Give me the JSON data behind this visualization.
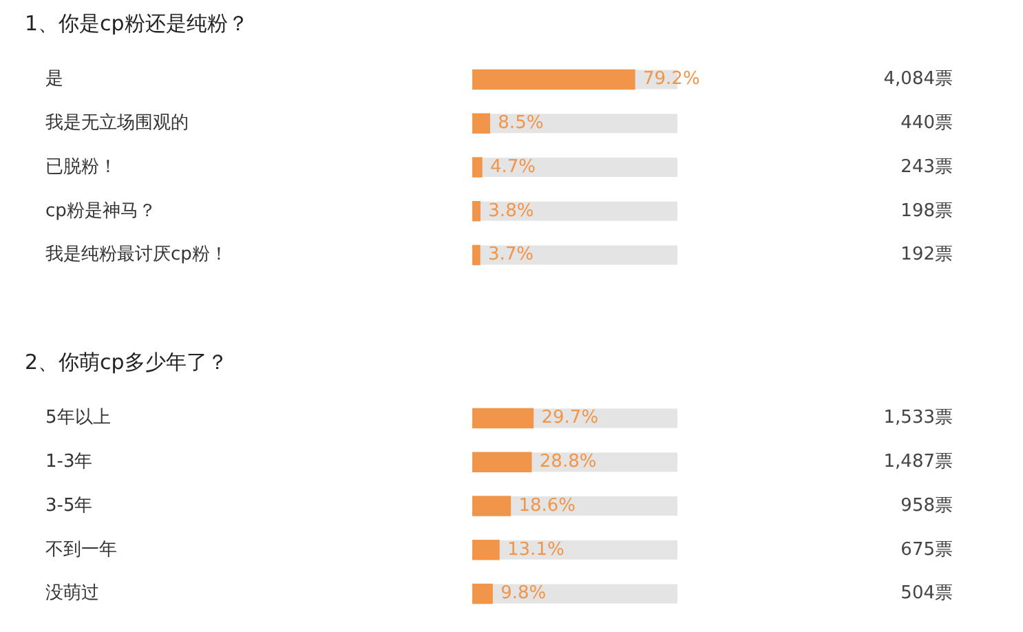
{
  "chart_data": [
    {
      "type": "bar",
      "orientation": "horizontal",
      "title": "1、你是cp粉还是纯粉？",
      "categories": [
        "是",
        "我是无立场围观的",
        "已脱粉！",
        "cp粉是神马？",
        "我是纯粉最讨厌cp粉！"
      ],
      "values": [
        79.2,
        8.5,
        4.7,
        3.8,
        3.7
      ],
      "value_labels": [
        "79.2%",
        "8.5%",
        "4.7%",
        "3.8%",
        "3.7%"
      ],
      "color": "#f0954a",
      "xlim": [
        0,
        100
      ],
      "tick_labels": "y",
      "legend": false,
      "annotations": [
        "4,084票",
        "440票",
        "243票",
        "198票",
        "192票"
      ]
    },
    {
      "type": "bar",
      "orientation": "horizontal",
      "title": "2、你萌cp多少年了？",
      "categories": [
        "5年以上",
        "1-3年",
        "3-5年",
        "不到一年",
        "没萌过"
      ],
      "values": [
        29.7,
        28.8,
        18.6,
        13.1,
        9.8
      ],
      "value_labels": [
        "29.7%",
        "28.8%",
        "18.6%",
        "13.1%",
        "9.8%"
      ],
      "color": "#f0954a",
      "xlim": [
        0,
        100
      ],
      "tick_labels": "y",
      "legend": false,
      "annotations": [
        "1,533票",
        "1,487票",
        "958票",
        "675票",
        "504票"
      ]
    }
  ]
}
